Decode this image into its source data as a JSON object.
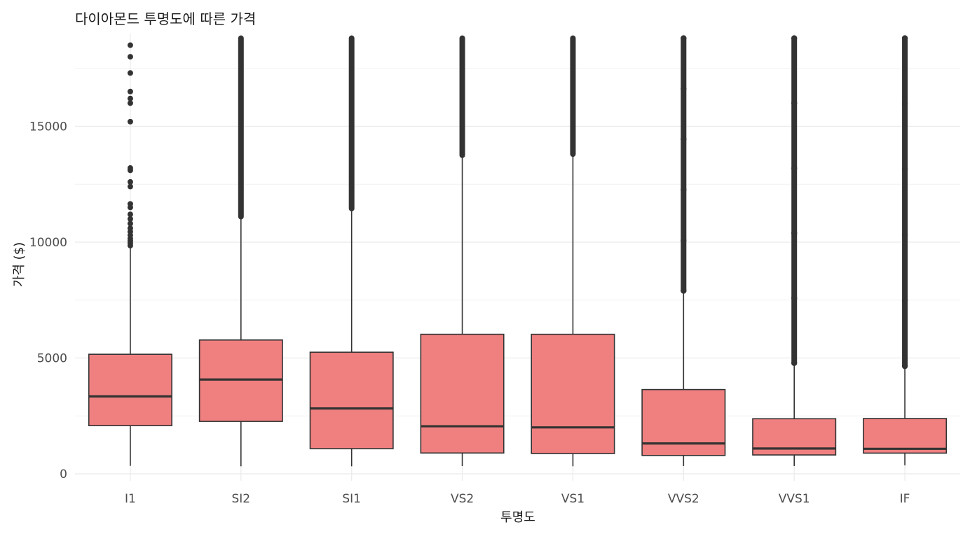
{
  "chart_data": {
    "type": "boxplot",
    "title": "다이아몬드 투명도에 따른 가격",
    "xlabel": "투명도",
    "ylabel": "가격 ($)",
    "ylim": [
      -300,
      19000
    ],
    "yticks": [
      0,
      5000,
      10000,
      15000
    ],
    "ytick_labels": [
      "0",
      "5000",
      "10000",
      "15000"
    ],
    "grid": true,
    "colors": {
      "fill": "#f08080",
      "line": "#333333"
    },
    "categories": [
      "I1",
      "SI2",
      "SI1",
      "VS2",
      "VS1",
      "VVS2",
      "VVS1",
      "IF"
    ],
    "boxes": [
      {
        "category": "I1",
        "min": 345,
        "q1": 2080,
        "median": 3344,
        "q3": 5161,
        "whisker_high": 9790,
        "outliers": [
          9850,
          9950,
          10050,
          10150,
          10300,
          10450,
          10600,
          10800,
          11000,
          11200,
          11500,
          11650,
          12400,
          12600,
          13100,
          13200,
          15200,
          16000,
          16200,
          16500,
          17300,
          18000,
          18500
        ]
      },
      {
        "category": "SI2",
        "min": 326,
        "q1": 2264,
        "median": 4072,
        "q3": 5777,
        "whisker_high": 11040,
        "outlier_band": [
          11100,
          18800
        ]
      },
      {
        "category": "SI1",
        "min": 326,
        "q1": 1089,
        "median": 2822,
        "q3": 5250,
        "whisker_high": 11400,
        "outlier_band": [
          11450,
          18800
        ]
      },
      {
        "category": "VS2",
        "min": 334,
        "q1": 900,
        "median": 2054,
        "q3": 6024,
        "whisker_high": 13700,
        "outlier_band": [
          13750,
          18800
        ]
      },
      {
        "category": "VS1",
        "min": 327,
        "q1": 876,
        "median": 2005,
        "q3": 6023,
        "whisker_high": 13750,
        "outlier_band": [
          13800,
          18800
        ]
      },
      {
        "category": "VVS2",
        "min": 336,
        "q1": 794,
        "median": 1311,
        "q3": 3638,
        "whisker_high": 7850,
        "outlier_band": [
          7900,
          18800
        ]
      },
      {
        "category": "VVS1",
        "min": 336,
        "q1": 816,
        "median": 1093,
        "q3": 2379,
        "whisker_high": 4720,
        "outlier_band": [
          4780,
          18800
        ]
      },
      {
        "category": "IF",
        "min": 369,
        "q1": 895,
        "median": 1080,
        "q3": 2388,
        "whisker_high": 4600,
        "outlier_band": [
          4650,
          18800
        ]
      }
    ]
  }
}
